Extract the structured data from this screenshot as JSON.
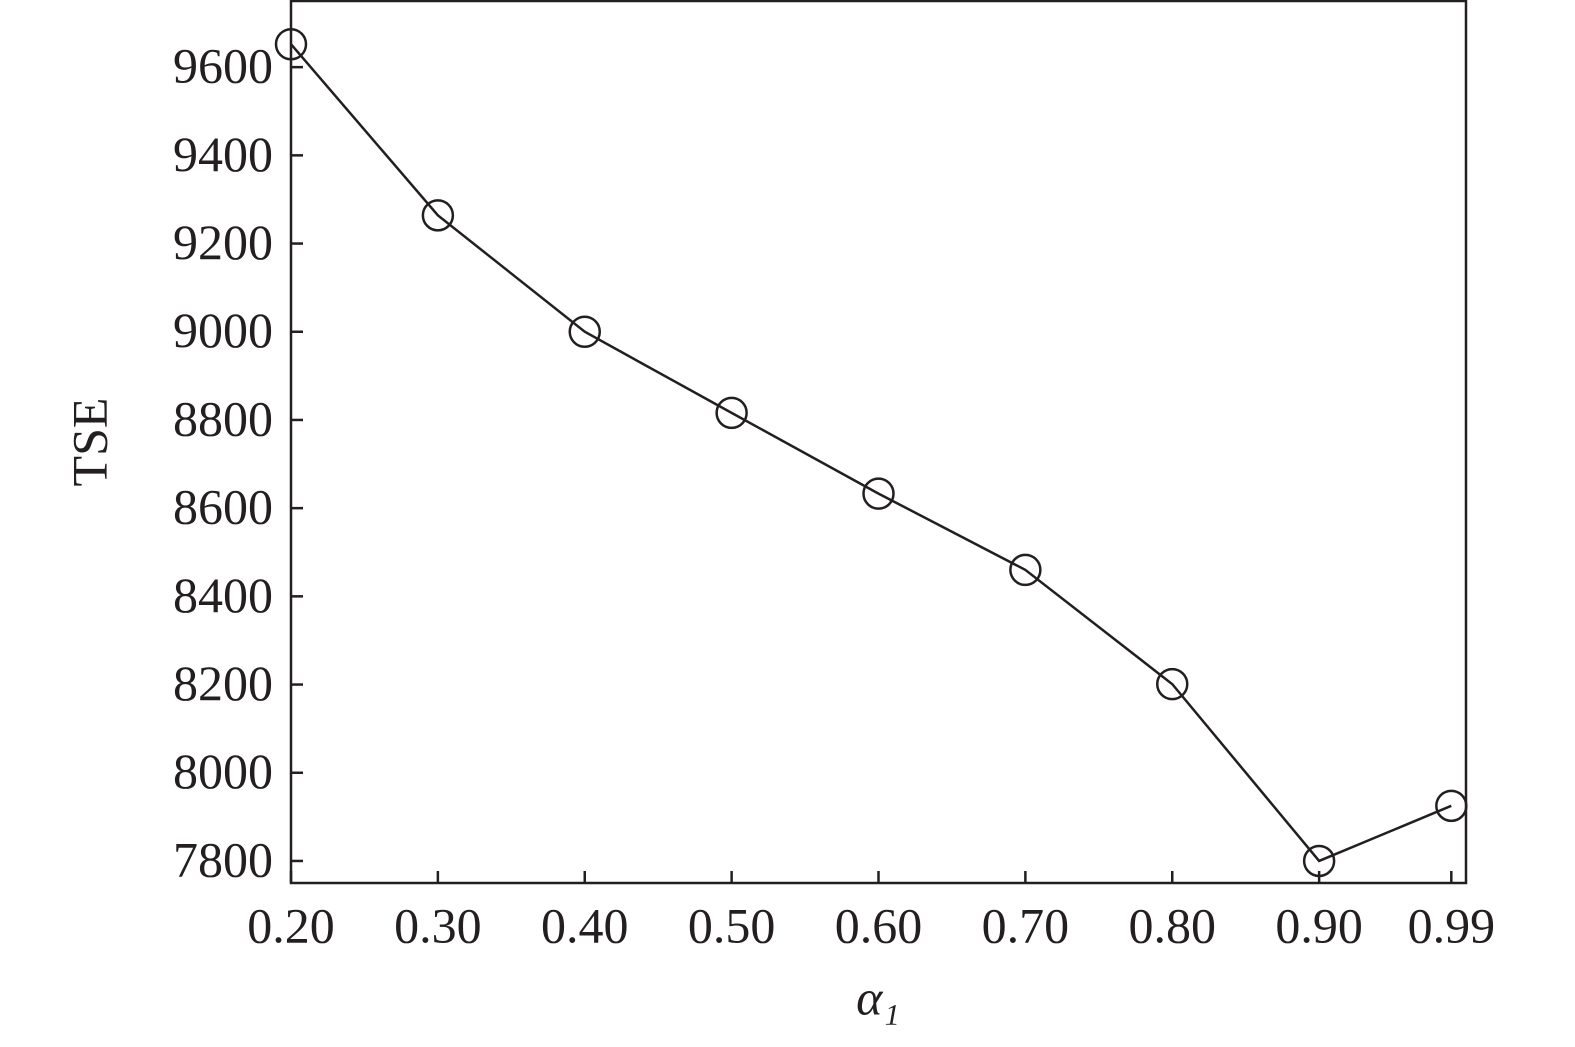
{
  "chart_data": {
    "type": "line",
    "xlabel": "α₁",
    "ylabel": "TSE",
    "x": [
      0.2,
      0.3,
      0.4,
      0.5,
      0.6,
      0.7,
      0.8,
      0.9,
      0.99
    ],
    "series": [
      {
        "color": "#231f20",
        "values": [
          9652,
          9264,
          9000,
          8816,
          8633,
          8460,
          8201,
          7800,
          7925
        ]
      }
    ],
    "xlim": [
      0.2,
      1.0
    ],
    "xticks": [
      {
        "value": 0.2,
        "label": "0.20"
      },
      {
        "value": 0.3,
        "label": "0.30"
      },
      {
        "value": 0.4,
        "label": "0.40"
      },
      {
        "value": 0.5,
        "label": "0.50"
      },
      {
        "value": 0.6,
        "label": "0.60"
      },
      {
        "value": 0.7,
        "label": "0.70"
      },
      {
        "value": 0.8,
        "label": "0.80"
      },
      {
        "value": 0.9,
        "label": "0.90"
      },
      {
        "value": 0.99,
        "label": "0.99"
      }
    ],
    "ylim": [
      7750,
      9750
    ],
    "yticks": [
      7800,
      8000,
      8200,
      8400,
      8600,
      8800,
      9000,
      9200,
      9400,
      9600
    ],
    "grid": false
  }
}
